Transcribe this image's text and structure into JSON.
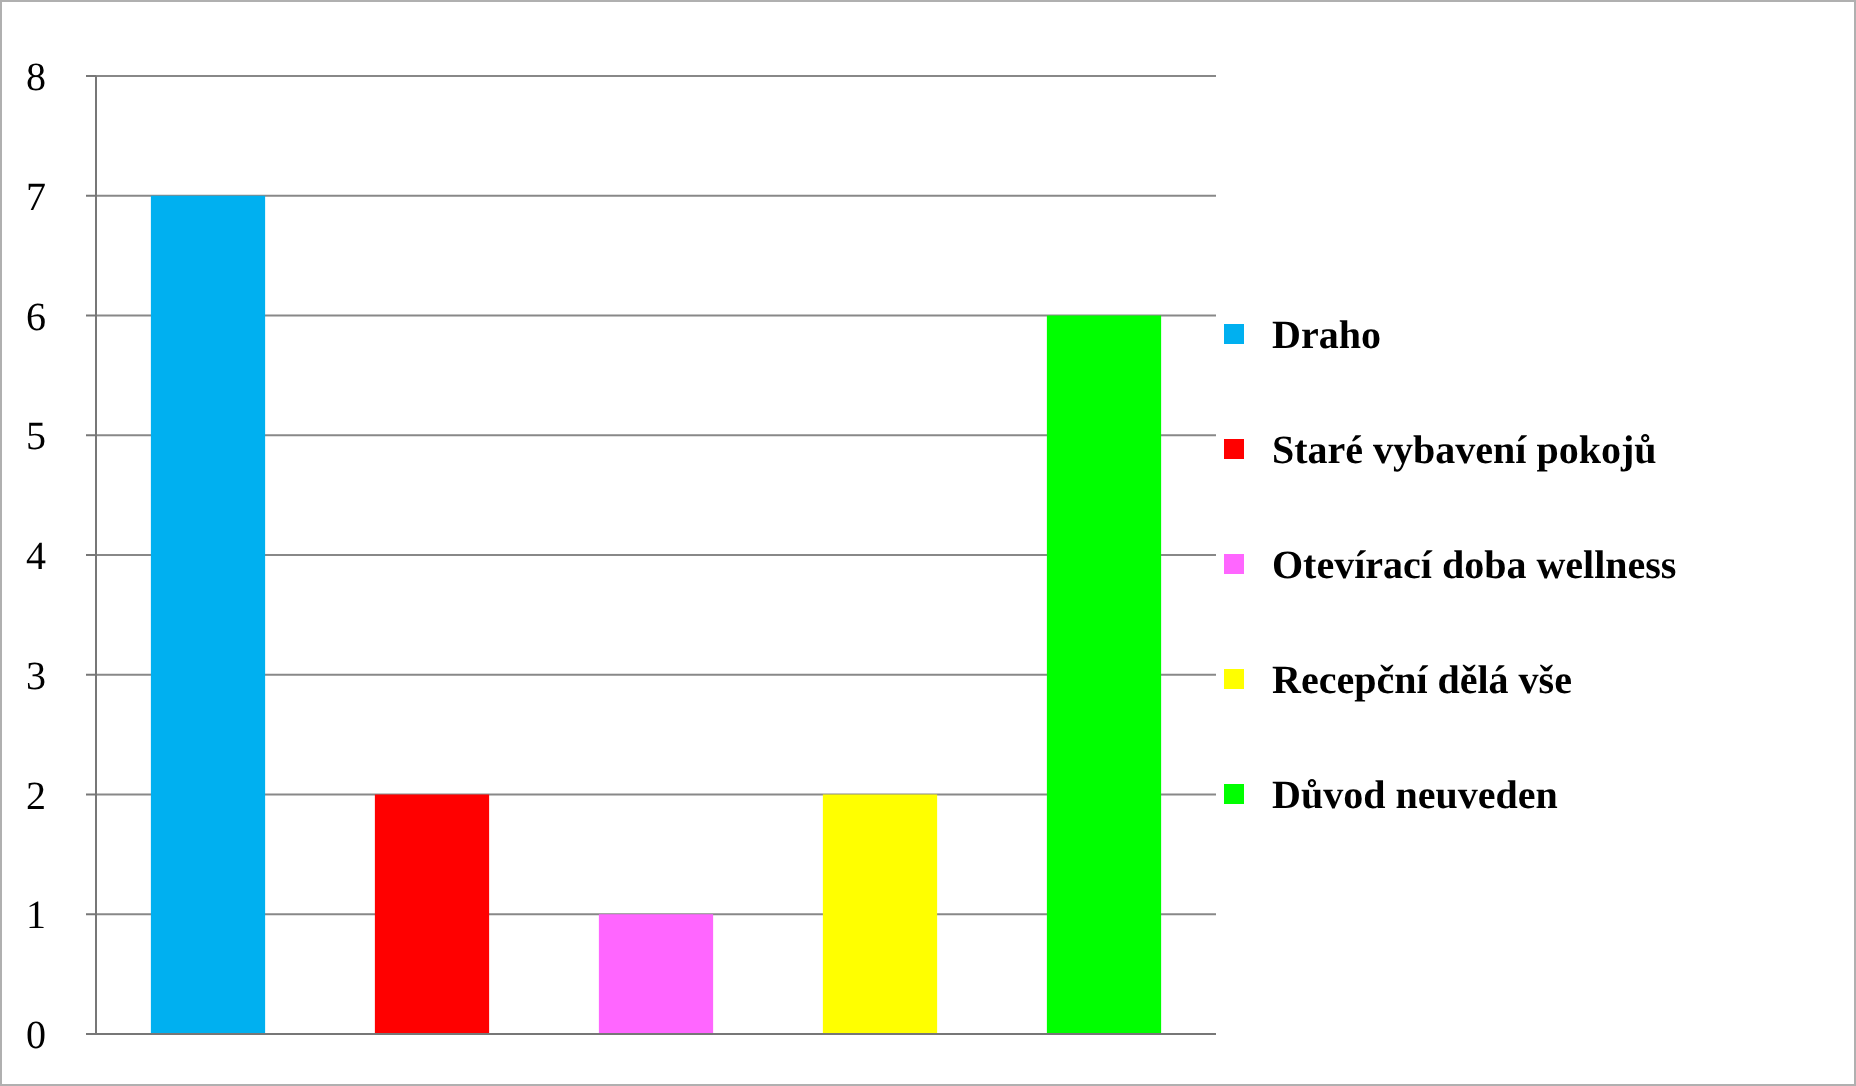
{
  "chart_data": {
    "type": "bar",
    "categories": [
      null,
      null,
      null,
      null,
      null
    ],
    "series": [
      {
        "name": "Draho",
        "color": "#00b0f0",
        "values": [
          7,
          null,
          null,
          null,
          null
        ]
      },
      {
        "name": "Staré vybavení pokojů",
        "color": "#ff0000",
        "values": [
          null,
          2,
          null,
          null,
          null
        ]
      },
      {
        "name": "Otevírací doba wellness",
        "color": "#ff66ff",
        "values": [
          null,
          null,
          1,
          null,
          null
        ]
      },
      {
        "name": "Recepční dělá vše",
        "color": "#ffff00",
        "values": [
          null,
          null,
          null,
          2,
          null
        ]
      },
      {
        "name": "Důvod neuveden",
        "color": "#00ff00",
        "values": [
          null,
          null,
          null,
          null,
          6
        ]
      }
    ],
    "ylim": [
      0,
      8
    ],
    "yticks": [
      0,
      1,
      2,
      3,
      4,
      5,
      6,
      7,
      8
    ],
    "grid": "y",
    "legend": "right"
  }
}
